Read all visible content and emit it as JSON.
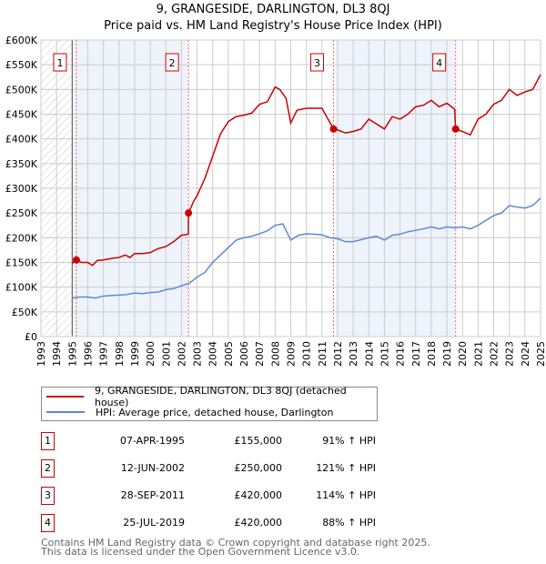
{
  "title": "9, GRANGESIDE, DARLINGTON, DL3 8QJ",
  "subtitle": "Price paid vs. HM Land Registry's House Price Index (HPI)",
  "chart_data": {
    "type": "line",
    "xlim": [
      1993,
      2025
    ],
    "ylim": [
      0,
      600000
    ],
    "x_ticks": [
      "1993",
      "1994",
      "1995",
      "1996",
      "1997",
      "1998",
      "1999",
      "2000",
      "2001",
      "2002",
      "2003",
      "2004",
      "2005",
      "2006",
      "2007",
      "2008",
      "2009",
      "2010",
      "2011",
      "2012",
      "2013",
      "2014",
      "2015",
      "2016",
      "2017",
      "2018",
      "2019",
      "2020",
      "2021",
      "2022",
      "2023",
      "2024",
      "2025"
    ],
    "y_ticks": [
      {
        "v": 0,
        "label": "£0"
      },
      {
        "v": 50000,
        "label": "£50K"
      },
      {
        "v": 100000,
        "label": "£100K"
      },
      {
        "v": 150000,
        "label": "£150K"
      },
      {
        "v": 200000,
        "label": "£200K"
      },
      {
        "v": 250000,
        "label": "£250K"
      },
      {
        "v": 300000,
        "label": "£300K"
      },
      {
        "v": 350000,
        "label": "£350K"
      },
      {
        "v": 400000,
        "label": "£400K"
      },
      {
        "v": 450000,
        "label": "£450K"
      },
      {
        "v": 500000,
        "label": "£500K"
      },
      {
        "v": 550000,
        "label": "£550K"
      },
      {
        "v": 600000,
        "label": "£600K"
      }
    ],
    "grid": true,
    "colors": {
      "property": "#cc0000",
      "hpi": "#5b8bd0",
      "shade": "#eef3fc",
      "marker_line": "#ff6666"
    },
    "series": [
      {
        "name": "9, GRANGESIDE, DARLINGTON, DL3 8QJ (detached house)",
        "x": [
          1995,
          1995.27,
          1995.6,
          1996,
          1996.3,
          1996.6,
          1997,
          1997.5,
          1998,
          1998.4,
          1998.7,
          1999,
          1999.5,
          2000,
          2000.5,
          2001,
          2001.5,
          2002,
          2002.44,
          2002.45,
          2002.8,
          2003,
          2003.5,
          2004,
          2004.5,
          2005,
          2005.5,
          2006,
          2006.5,
          2007,
          2007.5,
          2008,
          2008.3,
          2008.7,
          2009,
          2009.4,
          2010,
          2010.5,
          2011,
          2011.3,
          2011.74,
          2012,
          2012.5,
          2013,
          2013.5,
          2014,
          2014.5,
          2015,
          2015.5,
          2016,
          2016.5,
          2017,
          2017.5,
          2018,
          2018.5,
          2019,
          2019.5,
          2019.56,
          2020,
          2020.5,
          2021,
          2021.5,
          2022,
          2022.5,
          2023,
          2023.5,
          2024,
          2024.5,
          2025
        ],
        "values": [
          148000,
          155000,
          150000,
          150000,
          144000,
          154000,
          155000,
          158000,
          160000,
          165000,
          160000,
          168000,
          168000,
          170000,
          178000,
          182000,
          192000,
          205000,
          207000,
          250000,
          275000,
          285000,
          320000,
          365000,
          410000,
          435000,
          445000,
          448000,
          452000,
          470000,
          475000,
          505000,
          500000,
          482000,
          432000,
          458000,
          462000,
          462000,
          462000,
          445000,
          420000,
          418000,
          412000,
          415000,
          420000,
          440000,
          430000,
          420000,
          445000,
          440000,
          450000,
          465000,
          468000,
          478000,
          465000,
          472000,
          460000,
          420000,
          415000,
          408000,
          440000,
          450000,
          470000,
          478000,
          500000,
          488000,
          495000,
          500000,
          530000
        ]
      },
      {
        "name": "HPI: Average price, detached house, Darlington",
        "x": [
          1995,
          1995.5,
          1996,
          1996.5,
          1997,
          1997.5,
          1998,
          1998.5,
          1999,
          1999.5,
          2000,
          2000.5,
          2001,
          2001.5,
          2002,
          2002.5,
          2003,
          2003.5,
          2004,
          2004.5,
          2005,
          2005.5,
          2006,
          2006.5,
          2007,
          2007.5,
          2008,
          2008.5,
          2009,
          2009.5,
          2010,
          2010.5,
          2011,
          2011.5,
          2012,
          2012.5,
          2013,
          2013.5,
          2014,
          2014.5,
          2015,
          2015.5,
          2016,
          2016.5,
          2017,
          2017.5,
          2018,
          2018.5,
          2019,
          2019.5,
          2020,
          2020.5,
          2021,
          2021.5,
          2022,
          2022.5,
          2023,
          2023.5,
          2024,
          2024.5,
          2025
        ],
        "values": [
          78000,
          80000,
          80000,
          78000,
          82000,
          83000,
          84000,
          85000,
          88000,
          87000,
          89000,
          90000,
          95000,
          97000,
          103000,
          108000,
          120000,
          130000,
          150000,
          165000,
          180000,
          195000,
          200000,
          203000,
          208000,
          214000,
          225000,
          228000,
          195000,
          205000,
          208000,
          207000,
          206000,
          200000,
          198000,
          192000,
          192000,
          196000,
          200000,
          203000,
          195000,
          205000,
          207000,
          212000,
          215000,
          218000,
          222000,
          218000,
          222000,
          220000,
          222000,
          218000,
          225000,
          235000,
          245000,
          250000,
          265000,
          262000,
          260000,
          265000,
          280000
        ]
      }
    ],
    "sales": [
      {
        "id": "1",
        "x": 1995.27,
        "value": 155000
      },
      {
        "id": "2",
        "x": 2002.45,
        "value": 250000
      },
      {
        "id": "3",
        "x": 2011.74,
        "value": 420000
      },
      {
        "id": "4",
        "x": 2019.56,
        "value": 420000
      }
    ],
    "shaded_ranges": [
      [
        1995,
        2002.45
      ],
      [
        2011.9,
        2019.56
      ]
    ],
    "hatched_range": [
      1993,
      1995
    ]
  },
  "legend": {
    "property": "9, GRANGESIDE, DARLINGTON, DL3 8QJ (detached house)",
    "hpi": "HPI: Average price, detached house, Darlington"
  },
  "transactions": [
    {
      "num": "1",
      "date": "07-APR-1995",
      "price": "£155,000",
      "hpi": "91% ↑ HPI"
    },
    {
      "num": "2",
      "date": "12-JUN-2002",
      "price": "£250,000",
      "hpi": "121% ↑ HPI"
    },
    {
      "num": "3",
      "date": "28-SEP-2011",
      "price": "£420,000",
      "hpi": "114% ↑ HPI"
    },
    {
      "num": "4",
      "date": "25-JUL-2019",
      "price": "£420,000",
      "hpi": "88% ↑ HPI"
    }
  ],
  "footer": {
    "line1": "Contains HM Land Registry data © Crown copyright and database right 2025.",
    "line2": "This data is licensed under the Open Government Licence v3.0."
  }
}
